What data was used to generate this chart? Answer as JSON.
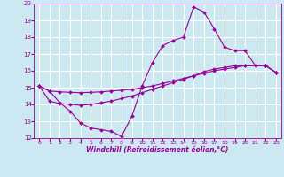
{
  "xlabel": "Windchill (Refroidissement éolien,°C)",
  "background_color": "#cce8f0",
  "grid_color": "#ffffff",
  "line_color": "#990099",
  "xlim": [
    -0.5,
    23.5
  ],
  "ylim": [
    12,
    20
  ],
  "xticks": [
    0,
    1,
    2,
    3,
    4,
    5,
    6,
    7,
    8,
    9,
    10,
    11,
    12,
    13,
    14,
    15,
    16,
    17,
    18,
    19,
    20,
    21,
    22,
    23
  ],
  "yticks": [
    12,
    13,
    14,
    15,
    16,
    17,
    18,
    19,
    20
  ],
  "line1_x": [
    0,
    1,
    2,
    3,
    4,
    5,
    6,
    7,
    8,
    9,
    10,
    11,
    12,
    13,
    14,
    15,
    16,
    17,
    18,
    19,
    20,
    21,
    22,
    23
  ],
  "line1_y": [
    15.1,
    14.8,
    14.1,
    13.6,
    12.9,
    12.6,
    12.5,
    12.4,
    12.1,
    13.3,
    15.1,
    16.5,
    17.5,
    17.8,
    18.0,
    19.8,
    19.5,
    18.5,
    17.4,
    17.2,
    17.2,
    16.3,
    16.3,
    15.9
  ],
  "line2_x": [
    0,
    1,
    2,
    3,
    4,
    5,
    6,
    7,
    8,
    9,
    10,
    11,
    12,
    13,
    14,
    15,
    16,
    17,
    18,
    19,
    20,
    21,
    22,
    23
  ],
  "line2_y": [
    15.1,
    14.2,
    14.05,
    14.0,
    13.95,
    14.0,
    14.1,
    14.2,
    14.35,
    14.5,
    14.7,
    14.9,
    15.1,
    15.3,
    15.5,
    15.7,
    15.95,
    16.1,
    16.2,
    16.3,
    16.3,
    16.3,
    16.3,
    15.9
  ],
  "line3_x": [
    0,
    1,
    2,
    3,
    4,
    5,
    6,
    7,
    8,
    9,
    10,
    11,
    12,
    13,
    14,
    15,
    16,
    17,
    18,
    19,
    20,
    21,
    22,
    23
  ],
  "line3_y": [
    15.1,
    14.8,
    14.75,
    14.72,
    14.7,
    14.72,
    14.75,
    14.8,
    14.85,
    14.9,
    15.0,
    15.1,
    15.25,
    15.4,
    15.55,
    15.7,
    15.85,
    16.0,
    16.1,
    16.2,
    16.3,
    16.3,
    16.3,
    15.9
  ]
}
